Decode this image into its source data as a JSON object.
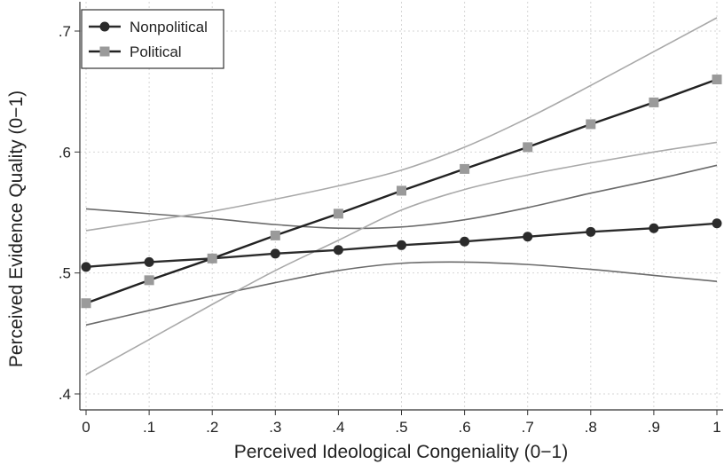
{
  "chart_data": {
    "type": "line",
    "xlabel": "Perceived Ideological Congeniality (0−1)",
    "ylabel": "Perceived Evidence Quality (0−1)",
    "xlim": [
      0,
      1
    ],
    "ylim": [
      0.395,
      0.71
    ],
    "grid": true,
    "legend_position": "top-left",
    "x_tick_labels": [
      "0",
      ".1",
      ".2",
      ".3",
      ".4",
      ".5",
      ".6",
      ".7",
      ".8",
      ".9",
      "1"
    ],
    "x_tick_values": [
      0,
      0.1,
      0.2,
      0.3,
      0.4,
      0.5,
      0.6,
      0.7,
      0.8,
      0.9,
      1
    ],
    "y_tick_labels": [
      ".4",
      ".5",
      ".6",
      ".7"
    ],
    "y_tick_values": [
      0.4,
      0.5,
      0.6,
      0.7
    ],
    "x": [
      0,
      0.1,
      0.2,
      0.3,
      0.4,
      0.5,
      0.6,
      0.7,
      0.8,
      0.9,
      1
    ],
    "series": [
      {
        "name": "Nonpolitical",
        "marker": "circle",
        "color": "#2b2b2b",
        "values": [
          0.505,
          0.509,
          0.512,
          0.516,
          0.519,
          0.523,
          0.526,
          0.53,
          0.534,
          0.537,
          0.541
        ],
        "ci_color": "#6b6b6b",
        "ci_lower": [
          0.457,
          0.469,
          0.481,
          0.492,
          0.502,
          0.508,
          0.509,
          0.507,
          0.503,
          0.498,
          0.493
        ],
        "ci_upper": [
          0.553,
          0.549,
          0.545,
          0.54,
          0.537,
          0.538,
          0.544,
          0.554,
          0.566,
          0.577,
          0.589
        ]
      },
      {
        "name": "Political",
        "marker": "square",
        "color": "#9a9a9a",
        "line_color": "#222222",
        "values": [
          0.475,
          0.494,
          0.512,
          0.531,
          0.549,
          0.568,
          0.586,
          0.604,
          0.623,
          0.641,
          0.66
        ],
        "ci_color": "#a9a9a9",
        "ci_lower": [
          0.416,
          0.445,
          0.474,
          0.502,
          0.527,
          0.552,
          0.569,
          0.581,
          0.591,
          0.6,
          0.608
        ],
        "ci_upper": [
          0.535,
          0.543,
          0.551,
          0.561,
          0.572,
          0.585,
          0.604,
          0.628,
          0.655,
          0.683,
          0.711
        ]
      }
    ]
  }
}
